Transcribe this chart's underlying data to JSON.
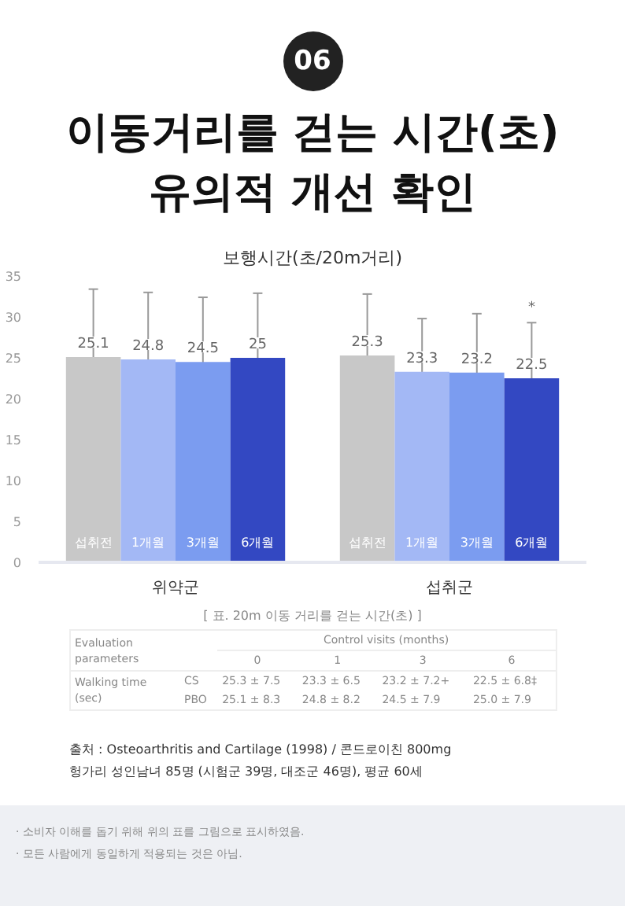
{
  "chart_data": {
    "type": "bar",
    "title": "이동거리를 걷는 시간(초)\n유의적 개선 확인",
    "subtitle": "보행시간(초/20m거리)",
    "categories": [
      "위약군",
      "섭취군"
    ],
    "series": [
      {
        "name": "섭취전",
        "color": "#c8c8c8",
        "values": [
          25.1,
          25.3
        ],
        "errors": [
          8.3,
          7.5
        ]
      },
      {
        "name": "1개월",
        "color": "#a3b8f5",
        "values": [
          24.8,
          23.3
        ],
        "errors": [
          8.2,
          6.5
        ]
      },
      {
        "name": "3개월",
        "color": "#7b9cf0",
        "values": [
          24.5,
          23.2
        ],
        "errors": [
          7.9,
          7.2
        ]
      },
      {
        "name": "6개월",
        "color": "#3348c2",
        "values": [
          25,
          22.5
        ],
        "errors": [
          7.9,
          6.8
        ]
      }
    ],
    "ylim": [
      0,
      35
    ],
    "yticks": [
      0,
      5,
      10,
      15,
      20,
      25,
      30,
      35
    ],
    "grid": false,
    "data_labels": true,
    "annotations": [
      "06",
      "[ 표. 20m 이동 거리를 걷는 시간(초) ]",
      "Evaluation parameters",
      "Control visits (months)",
      "0",
      "1",
      "3",
      "6",
      "Walking time (sec)",
      "CS",
      "25.3 ± 7.5",
      "23.3 ± 6.5",
      "23.2 ± 7.2+",
      "22.5 ± 6.8‡",
      "PBO",
      "25.1 ± 8.3",
      "24.8 ± 8.2",
      "24.5 ± 7.9",
      "25.0 ± 7.9",
      "출처 : Osteoarthritis and Cartilage (1998) / 콘드로이친 800mg",
      "헝가리 성인남녀 85명 (시험군 39명, 대조군 46명), 평균 60세",
      "· 소비자 이해를 돕기 위해 위의 표를 그림으로 표시하였음.",
      "· 모든 사람에게 동일하게 적용되는 것은 아님.",
      "*"
    ]
  }
}
